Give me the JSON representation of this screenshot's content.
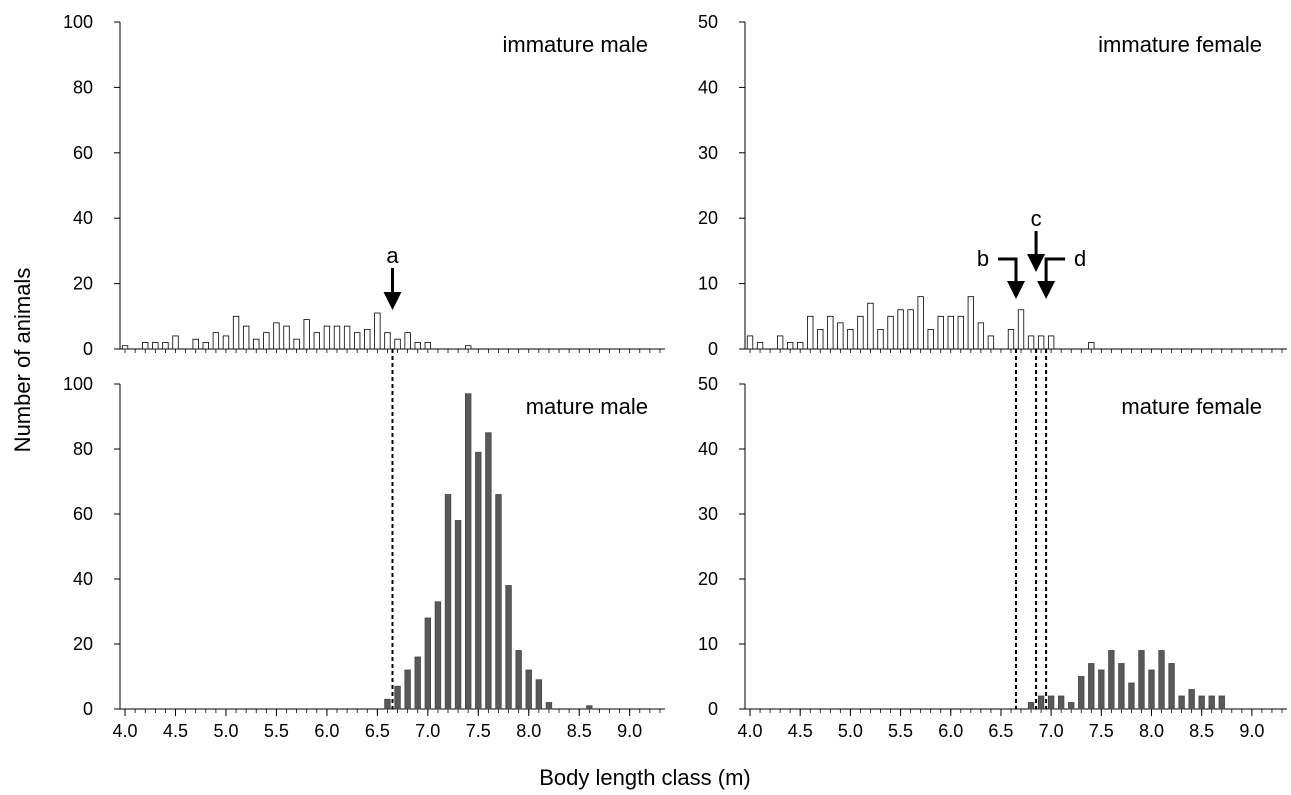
{
  "figure": {
    "ylabel": "Number of animals",
    "xlabel": "Body length class (m)"
  },
  "chart_data": [
    {
      "type": "bar",
      "panel": "immature male",
      "title": "immature male",
      "bin_width": 0.1,
      "x_ticks": [
        4.0,
        4.5,
        5.0,
        5.5,
        6.0,
        6.5,
        7.0,
        7.5,
        8.0,
        8.5,
        9.0
      ],
      "x": [
        4.0,
        4.1,
        4.2,
        4.3,
        4.4,
        4.5,
        4.6,
        4.7,
        4.8,
        4.9,
        5.0,
        5.1,
        5.2,
        5.3,
        5.4,
        5.5,
        5.6,
        5.7,
        5.8,
        5.9,
        6.0,
        6.1,
        6.2,
        6.3,
        6.4,
        6.5,
        6.6,
        6.7,
        6.8,
        6.9,
        7.0,
        7.1,
        7.2,
        7.3,
        7.4
      ],
      "values": [
        1,
        0,
        2,
        2,
        2,
        4,
        0,
        3,
        2,
        5,
        4,
        10,
        7,
        3,
        5,
        8,
        7,
        3,
        9,
        5,
        7,
        7,
        7,
        5,
        6,
        11,
        5,
        3,
        5,
        2,
        2,
        0,
        0,
        0,
        1
      ],
      "ylim": [
        0,
        100
      ],
      "y_ticks": [
        0,
        20,
        40,
        60,
        80,
        100
      ],
      "bar_fill": "#ffffff",
      "annotations": [
        {
          "label": "a",
          "x": 6.65
        }
      ]
    },
    {
      "type": "bar",
      "panel": "immature female",
      "title": "immature female",
      "bin_width": 0.1,
      "x_ticks": [
        4.0,
        4.5,
        5.0,
        5.5,
        6.0,
        6.5,
        7.0,
        7.5,
        8.0,
        8.5,
        9.0
      ],
      "x": [
        4.0,
        4.1,
        4.2,
        4.3,
        4.4,
        4.5,
        4.6,
        4.7,
        4.8,
        4.9,
        5.0,
        5.1,
        5.2,
        5.3,
        5.4,
        5.5,
        5.6,
        5.7,
        5.8,
        5.9,
        6.0,
        6.1,
        6.2,
        6.3,
        6.4,
        6.5,
        6.6,
        6.7,
        6.8,
        6.9,
        7.0,
        7.1,
        7.2,
        7.3,
        7.4
      ],
      "values": [
        2,
        1,
        0,
        2,
        1,
        1,
        5,
        3,
        5,
        4,
        3,
        5,
        7,
        3,
        5,
        6,
        6,
        8,
        3,
        5,
        5,
        5,
        8,
        4,
        2,
        0,
        3,
        6,
        2,
        2,
        2,
        0,
        0,
        0,
        1
      ],
      "ylim": [
        0,
        50
      ],
      "y_ticks": [
        0,
        10,
        20,
        30,
        40,
        50
      ],
      "bar_fill": "#ffffff",
      "annotations": [
        {
          "label": "b",
          "x": 6.65
        },
        {
          "label": "c",
          "x": 6.85
        },
        {
          "label": "d",
          "x": 6.95
        }
      ]
    },
    {
      "type": "bar",
      "panel": "mature male",
      "title": "mature male",
      "bin_width": 0.1,
      "x_ticks": [
        4.0,
        4.5,
        5.0,
        5.5,
        6.0,
        6.5,
        7.0,
        7.5,
        8.0,
        8.5,
        9.0
      ],
      "x": [
        6.6,
        6.7,
        6.8,
        6.9,
        7.0,
        7.1,
        7.2,
        7.3,
        7.4,
        7.5,
        7.6,
        7.7,
        7.8,
        7.9,
        8.0,
        8.1,
        8.2,
        8.3,
        8.4,
        8.5,
        8.6
      ],
      "values": [
        3,
        7,
        12,
        16,
        28,
        33,
        66,
        58,
        97,
        79,
        85,
        66,
        38,
        18,
        12,
        9,
        2,
        0,
        0,
        0,
        1
      ],
      "ylim": [
        0,
        100
      ],
      "y_ticks": [
        0,
        20,
        40,
        60,
        80,
        100
      ],
      "bar_fill": "#595959",
      "reference_lines": [
        6.65
      ]
    },
    {
      "type": "bar",
      "panel": "mature female",
      "title": "mature female",
      "bin_width": 0.1,
      "x_ticks": [
        4.0,
        4.5,
        5.0,
        5.5,
        6.0,
        6.5,
        7.0,
        7.5,
        8.0,
        8.5,
        9.0
      ],
      "x": [
        6.8,
        6.9,
        7.0,
        7.1,
        7.2,
        7.3,
        7.4,
        7.5,
        7.6,
        7.7,
        7.8,
        7.9,
        8.0,
        8.1,
        8.2,
        8.3,
        8.4,
        8.5,
        8.6,
        8.7
      ],
      "values": [
        1,
        2,
        2,
        2,
        1,
        5,
        7,
        6,
        9,
        7,
        4,
        9,
        6,
        9,
        7,
        2,
        3,
        2,
        2,
        2
      ],
      "ylim": [
        0,
        50
      ],
      "y_ticks": [
        0,
        10,
        20,
        30,
        40,
        50
      ],
      "bar_fill": "#595959",
      "reference_lines": [
        6.65,
        6.85,
        6.95
      ]
    }
  ]
}
